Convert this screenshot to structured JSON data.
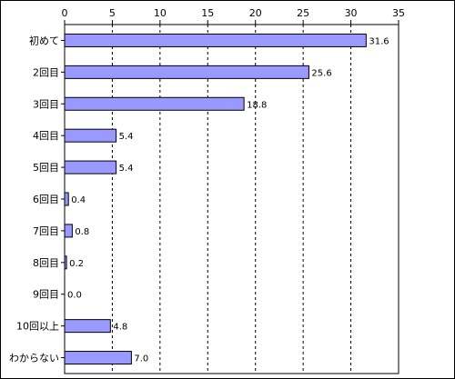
{
  "chart_data": {
    "type": "bar",
    "orientation": "horizontal",
    "categories": [
      "初めて",
      "2回目",
      "3回目",
      "4回目",
      "5回目",
      "6回目",
      "7回目",
      "8回目",
      "9回目",
      "10回以上",
      "わからない"
    ],
    "values": [
      31.6,
      25.6,
      18.8,
      5.4,
      5.4,
      0.4,
      0.8,
      0.2,
      0.0,
      4.8,
      7.0
    ],
    "value_labels": [
      "31.6",
      "25.6",
      "18.8",
      "5.4",
      "5.4",
      "0.4",
      "0.8",
      "0.2",
      "0.0",
      "4.8",
      "7.0"
    ],
    "xlim": [
      0,
      35
    ],
    "x_ticks": [
      0,
      5,
      10,
      15,
      20,
      25,
      30,
      35
    ],
    "x_tick_labels": [
      "0",
      "5",
      "10",
      "15",
      "20",
      "25",
      "30",
      "35"
    ],
    "x_axis_position": "top",
    "grid": "vertical dashed",
    "legend": "none",
    "bar_color": "#9999ff",
    "bar_edge_color": "#000000"
  }
}
